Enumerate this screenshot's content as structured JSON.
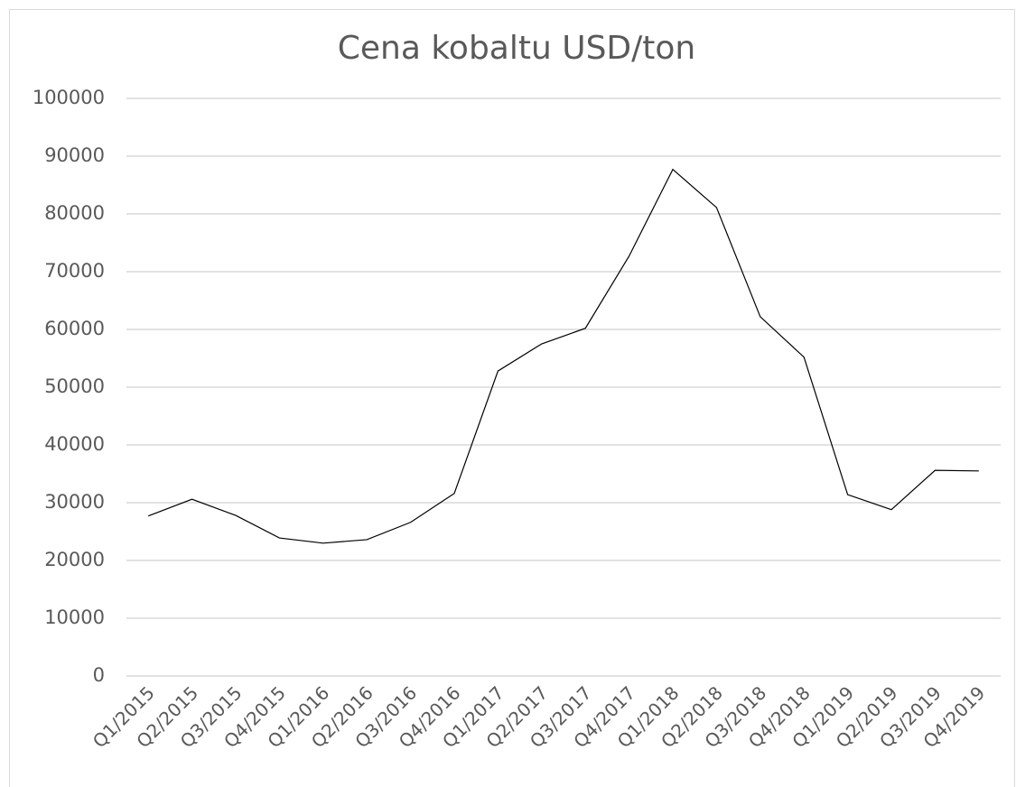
{
  "chart_data": {
    "type": "line",
    "title": "Cena kobaltu USD/ton",
    "categories": [
      "Q1/2015",
      "Q2/2015",
      "Q3/2015",
      "Q4/2015",
      "Q1/2016",
      "Q2/2016",
      "Q3/2016",
      "Q4/2016",
      "Q1/2017",
      "Q2/2017",
      "Q3/2017",
      "Q4/2017",
      "Q1/2018",
      "Q2/2018",
      "Q3/2018",
      "Q4/2018",
      "Q1/2019",
      "Q2/2019",
      "Q3/2019",
      "Q4/2019"
    ],
    "series": [
      {
        "color": "#000000",
        "values": [
          27700,
          30600,
          27800,
          23900,
          23000,
          23600,
          26600,
          31600,
          52800,
          57500,
          60200,
          72700,
          87700,
          81100,
          62200,
          55200,
          31400,
          28800,
          35600,
          35500
        ]
      }
    ],
    "ylim": [
      0,
      100000
    ],
    "yticks": [
      0,
      10000,
      20000,
      30000,
      40000,
      50000,
      60000,
      70000,
      80000,
      90000,
      100000
    ],
    "grid": true
  }
}
